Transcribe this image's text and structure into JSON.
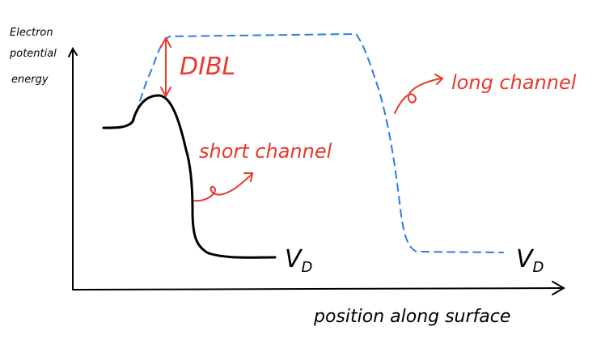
{
  "axes": {
    "y_label": [
      "Electron",
      "potential",
      "energy"
    ],
    "x_label": "position along surface"
  },
  "annotations": {
    "dibl": "DIBL",
    "short_channel": "short channel",
    "long_channel": "long channel",
    "drain_short": "V",
    "drain_short_sub": "D",
    "drain_long": "V",
    "drain_long_sub": "D"
  },
  "colors": {
    "axes": "#000000",
    "short_channel_curve": "#000000",
    "long_channel_curve": "#2a7de1",
    "annotation": "#e8392b"
  }
}
